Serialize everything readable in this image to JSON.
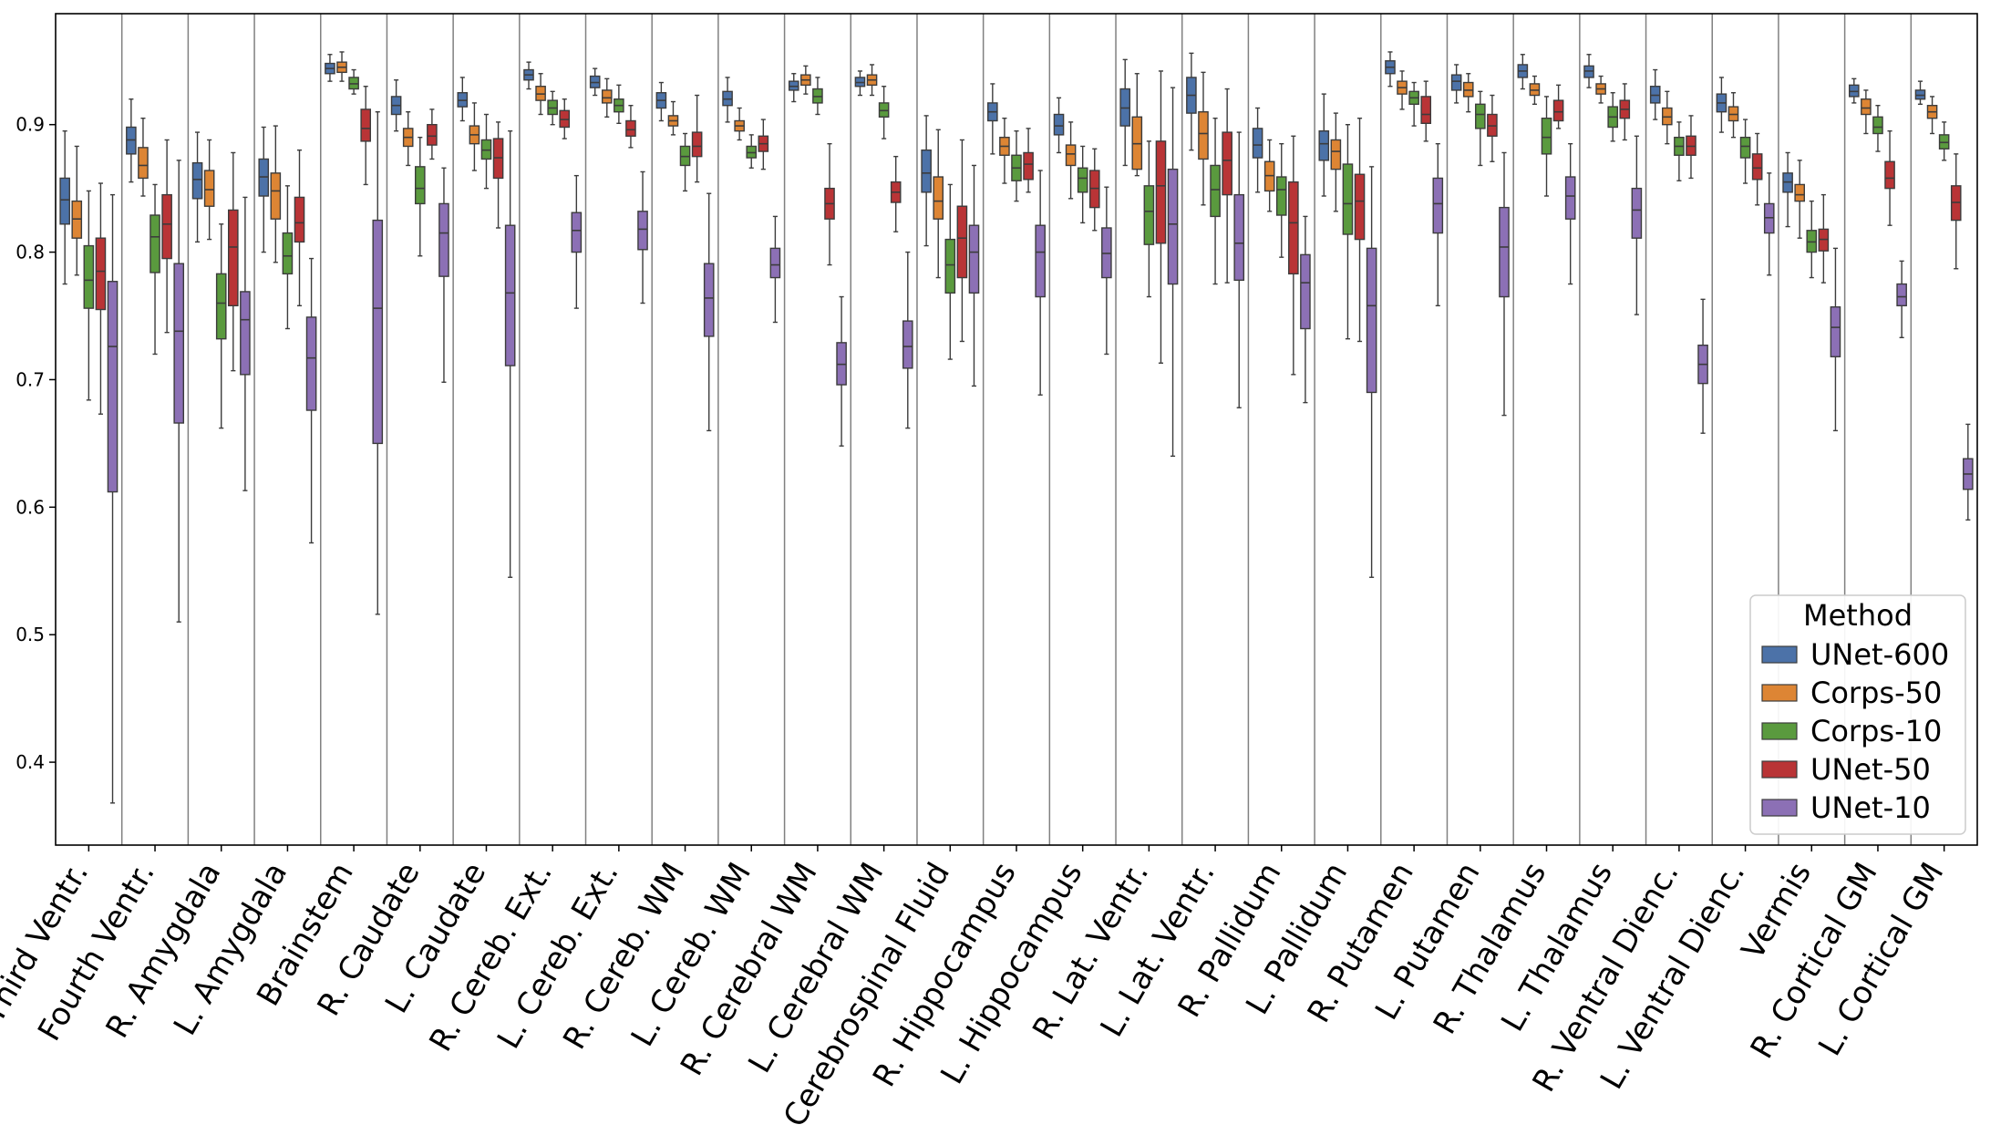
{
  "chart_data": {
    "type": "boxplot",
    "title": "",
    "xlabel": "",
    "ylabel": "",
    "ylim": [
      0.335,
      0.987
    ],
    "yticks": [
      0.4,
      0.5,
      0.6,
      0.7,
      0.8,
      0.9
    ],
    "ytick_labels": [
      "0.4",
      "0.5",
      "0.6",
      "0.7",
      "0.8",
      "0.9"
    ],
    "grid": false,
    "legend": {
      "title": "Method",
      "position": "lower-right",
      "entries": [
        "UNet-600",
        "Corps-50",
        "Corps-10",
        "UNet-50",
        "UNet-10"
      ]
    },
    "series": [
      {
        "name": "UNet-600",
        "color": "#4c72a8"
      },
      {
        "name": "Corps-50",
        "color": "#dd8534"
      },
      {
        "name": "Corps-10",
        "color": "#5a9a3e"
      },
      {
        "name": "UNet-50",
        "color": "#b93436"
      },
      {
        "name": "UNet-10",
        "color": "#8c70b5"
      }
    ],
    "categories": [
      "Third Ventr.",
      "Fourth Ventr.",
      "R. Amygdala",
      "L. Amygdala",
      "Brainstem",
      "R. Caudate",
      "L. Caudate",
      "R. Cereb. Ext.",
      "L. Cereb. Ext.",
      "R. Cereb. WM",
      "L. Cereb. WM",
      "R. Cerebral WM",
      "L. Cerebral WM",
      "Cerebrospinal Fluid",
      "R. Hippocampus",
      "L. Hippocampus",
      "R. Lat. Ventr.",
      "L. Lat. Ventr.",
      "R. Pallidum",
      "L. Pallidum",
      "R. Putamen",
      "L. Putamen",
      "R. Thalamus",
      "L. Thalamus",
      "R. Ventral Dienc.",
      "L. Ventral Dienc.",
      "Vermis",
      "R. Cortical GM",
      "L. Cortical GM"
    ],
    "boxes": [
      [
        [
          0.775,
          0.822,
          0.841,
          0.858,
          0.895
        ],
        [
          0.782,
          0.811,
          0.826,
          0.84,
          0.883
        ],
        [
          0.684,
          0.756,
          0.778,
          0.805,
          0.848
        ],
        [
          0.673,
          0.755,
          0.785,
          0.811,
          0.854
        ],
        [
          0.368,
          0.612,
          0.726,
          0.777,
          0.845
        ]
      ],
      [
        [
          0.855,
          0.877,
          0.888,
          0.898,
          0.92
        ],
        [
          0.844,
          0.858,
          0.868,
          0.882,
          0.905
        ],
        [
          0.72,
          0.784,
          0.812,
          0.829,
          0.853
        ],
        [
          0.737,
          0.795,
          0.822,
          0.845,
          0.888
        ],
        [
          0.51,
          0.666,
          0.738,
          0.791,
          0.872
        ]
      ],
      [
        [
          0.808,
          0.842,
          0.857,
          0.87,
          0.894
        ],
        [
          0.81,
          0.836,
          0.849,
          0.864,
          0.888
        ],
        [
          0.662,
          0.732,
          0.76,
          0.783,
          0.822
        ],
        [
          0.707,
          0.758,
          0.804,
          0.833,
          0.878
        ],
        [
          0.613,
          0.704,
          0.747,
          0.769,
          0.843
        ]
      ],
      [
        [
          0.8,
          0.844,
          0.859,
          0.873,
          0.898
        ],
        [
          0.792,
          0.826,
          0.848,
          0.862,
          0.899
        ],
        [
          0.74,
          0.783,
          0.797,
          0.815,
          0.852
        ],
        [
          0.758,
          0.808,
          0.823,
          0.843,
          0.88
        ],
        [
          0.572,
          0.676,
          0.717,
          0.749,
          0.795
        ]
      ],
      [
        [
          0.934,
          0.94,
          0.944,
          0.948,
          0.955
        ],
        [
          0.934,
          0.941,
          0.945,
          0.949,
          0.957
        ],
        [
          0.924,
          0.928,
          0.932,
          0.937,
          0.943
        ],
        [
          0.853,
          0.887,
          0.897,
          0.912,
          0.93
        ],
        [
          0.516,
          0.65,
          0.756,
          0.825,
          0.91
        ]
      ],
      [
        [
          0.895,
          0.908,
          0.915,
          0.922,
          0.935
        ],
        [
          0.868,
          0.883,
          0.89,
          0.897,
          0.91
        ],
        [
          0.797,
          0.838,
          0.85,
          0.867,
          0.89
        ],
        [
          0.873,
          0.884,
          0.891,
          0.9,
          0.912
        ],
        [
          0.698,
          0.781,
          0.815,
          0.838,
          0.866
        ]
      ],
      [
        [
          0.903,
          0.914,
          0.919,
          0.925,
          0.937
        ],
        [
          0.864,
          0.885,
          0.892,
          0.899,
          0.917
        ],
        [
          0.85,
          0.873,
          0.88,
          0.888,
          0.908
        ],
        [
          0.819,
          0.858,
          0.874,
          0.889,
          0.902
        ],
        [
          0.545,
          0.711,
          0.768,
          0.821,
          0.895
        ]
      ],
      [
        [
          0.928,
          0.935,
          0.939,
          0.943,
          0.949
        ],
        [
          0.908,
          0.919,
          0.924,
          0.93,
          0.94
        ],
        [
          0.9,
          0.908,
          0.913,
          0.919,
          0.926
        ],
        [
          0.889,
          0.898,
          0.904,
          0.911,
          0.92
        ],
        [
          0.756,
          0.8,
          0.817,
          0.831,
          0.86
        ]
      ],
      [
        [
          0.923,
          0.929,
          0.933,
          0.938,
          0.944
        ],
        [
          0.906,
          0.917,
          0.921,
          0.927,
          0.936
        ],
        [
          0.901,
          0.91,
          0.915,
          0.92,
          0.931
        ],
        [
          0.882,
          0.891,
          0.896,
          0.903,
          0.915
        ],
        [
          0.76,
          0.802,
          0.818,
          0.832,
          0.863
        ]
      ],
      [
        [
          0.903,
          0.913,
          0.919,
          0.925,
          0.933
        ],
        [
          0.892,
          0.899,
          0.903,
          0.907,
          0.918
        ],
        [
          0.848,
          0.868,
          0.875,
          0.883,
          0.893
        ],
        [
          0.855,
          0.875,
          0.883,
          0.894,
          0.923
        ],
        [
          0.66,
          0.734,
          0.764,
          0.791,
          0.846
        ]
      ],
      [
        [
          0.902,
          0.915,
          0.92,
          0.926,
          0.937
        ],
        [
          0.888,
          0.895,
          0.899,
          0.903,
          0.913
        ],
        [
          0.866,
          0.874,
          0.878,
          0.883,
          0.892
        ],
        [
          0.865,
          0.879,
          0.885,
          0.891,
          0.904
        ],
        [
          0.745,
          0.78,
          0.79,
          0.803,
          0.828
        ]
      ],
      [
        [
          0.918,
          0.927,
          0.93,
          0.934,
          0.94
        ],
        [
          0.924,
          0.931,
          0.935,
          0.939,
          0.946
        ],
        [
          0.908,
          0.917,
          0.922,
          0.928,
          0.937
        ],
        [
          0.79,
          0.826,
          0.838,
          0.85,
          0.885
        ],
        [
          0.648,
          0.696,
          0.712,
          0.729,
          0.765
        ]
      ],
      [
        [
          0.923,
          0.93,
          0.933,
          0.937,
          0.942
        ],
        [
          0.923,
          0.931,
          0.935,
          0.939,
          0.947
        ],
        [
          0.889,
          0.906,
          0.911,
          0.917,
          0.93
        ],
        [
          0.816,
          0.839,
          0.847,
          0.855,
          0.875
        ],
        [
          0.662,
          0.709,
          0.726,
          0.746,
          0.8
        ]
      ],
      [
        [
          0.805,
          0.847,
          0.862,
          0.88,
          0.907
        ],
        [
          0.78,
          0.826,
          0.84,
          0.859,
          0.896
        ],
        [
          0.716,
          0.768,
          0.79,
          0.81,
          0.853
        ],
        [
          0.73,
          0.78,
          0.811,
          0.836,
          0.888
        ],
        [
          0.695,
          0.768,
          0.8,
          0.821,
          0.868
        ]
      ],
      [
        [
          0.877,
          0.903,
          0.91,
          0.917,
          0.932
        ],
        [
          0.854,
          0.876,
          0.883,
          0.89,
          0.905
        ],
        [
          0.84,
          0.856,
          0.866,
          0.876,
          0.895
        ],
        [
          0.847,
          0.857,
          0.869,
          0.878,
          0.897
        ],
        [
          0.688,
          0.765,
          0.8,
          0.821,
          0.864
        ]
      ],
      [
        [
          0.878,
          0.892,
          0.899,
          0.908,
          0.921
        ],
        [
          0.842,
          0.868,
          0.877,
          0.884,
          0.902
        ],
        [
          0.823,
          0.847,
          0.858,
          0.866,
          0.883
        ],
        [
          0.817,
          0.835,
          0.85,
          0.864,
          0.881
        ],
        [
          0.72,
          0.78,
          0.799,
          0.819,
          0.851
        ]
      ],
      [
        [
          0.868,
          0.899,
          0.913,
          0.928,
          0.951
        ],
        [
          0.86,
          0.865,
          0.885,
          0.906,
          0.94
        ],
        [
          0.765,
          0.806,
          0.832,
          0.852,
          0.887
        ],
        [
          0.713,
          0.807,
          0.852,
          0.887,
          0.942
        ],
        [
          0.64,
          0.775,
          0.822,
          0.865,
          0.929
        ]
      ],
      [
        [
          0.88,
          0.909,
          0.923,
          0.937,
          0.956
        ],
        [
          0.837,
          0.873,
          0.893,
          0.91,
          0.941
        ],
        [
          0.775,
          0.828,
          0.849,
          0.868,
          0.905
        ],
        [
          0.776,
          0.845,
          0.872,
          0.894,
          0.928
        ],
        [
          0.678,
          0.778,
          0.807,
          0.845,
          0.894
        ]
      ],
      [
        [
          0.847,
          0.874,
          0.884,
          0.897,
          0.913
        ],
        [
          0.832,
          0.848,
          0.86,
          0.871,
          0.888
        ],
        [
          0.796,
          0.829,
          0.849,
          0.859,
          0.885
        ],
        [
          0.704,
          0.783,
          0.823,
          0.855,
          0.891
        ],
        [
          0.682,
          0.74,
          0.776,
          0.798,
          0.828
        ]
      ],
      [
        [
          0.844,
          0.872,
          0.885,
          0.895,
          0.924
        ],
        [
          0.832,
          0.865,
          0.879,
          0.888,
          0.909
        ],
        [
          0.732,
          0.814,
          0.838,
          0.869,
          0.9
        ],
        [
          0.73,
          0.81,
          0.84,
          0.861,
          0.905
        ],
        [
          0.545,
          0.69,
          0.758,
          0.803,
          0.867
        ]
      ],
      [
        [
          0.93,
          0.94,
          0.945,
          0.95,
          0.957
        ],
        [
          0.912,
          0.924,
          0.929,
          0.934,
          0.942
        ],
        [
          0.899,
          0.916,
          0.921,
          0.926,
          0.933
        ],
        [
          0.887,
          0.901,
          0.908,
          0.922,
          0.934
        ],
        [
          0.758,
          0.815,
          0.838,
          0.858,
          0.885
        ]
      ],
      [
        [
          0.917,
          0.927,
          0.934,
          0.939,
          0.947
        ],
        [
          0.91,
          0.922,
          0.927,
          0.933,
          0.94
        ],
        [
          0.868,
          0.897,
          0.908,
          0.916,
          0.926
        ],
        [
          0.871,
          0.891,
          0.899,
          0.908,
          0.923
        ],
        [
          0.672,
          0.765,
          0.804,
          0.835,
          0.878
        ]
      ],
      [
        [
          0.928,
          0.937,
          0.942,
          0.947,
          0.955
        ],
        [
          0.916,
          0.923,
          0.927,
          0.932,
          0.938
        ],
        [
          0.844,
          0.877,
          0.89,
          0.905,
          0.922
        ],
        [
          0.897,
          0.903,
          0.91,
          0.919,
          0.931
        ],
        [
          0.775,
          0.826,
          0.844,
          0.859,
          0.885
        ]
      ],
      [
        [
          0.929,
          0.937,
          0.942,
          0.946,
          0.955
        ],
        [
          0.917,
          0.924,
          0.928,
          0.932,
          0.938
        ],
        [
          0.887,
          0.898,
          0.906,
          0.914,
          0.925
        ],
        [
          0.888,
          0.905,
          0.912,
          0.919,
          0.932
        ],
        [
          0.751,
          0.811,
          0.833,
          0.85,
          0.891
        ]
      ],
      [
        [
          0.904,
          0.917,
          0.923,
          0.93,
          0.943
        ],
        [
          0.885,
          0.9,
          0.906,
          0.913,
          0.926
        ],
        [
          0.856,
          0.876,
          0.883,
          0.89,
          0.902
        ],
        [
          0.858,
          0.876,
          0.883,
          0.891,
          0.907
        ],
        [
          0.658,
          0.697,
          0.712,
          0.727,
          0.763
        ]
      ],
      [
        [
          0.894,
          0.91,
          0.917,
          0.924,
          0.937
        ],
        [
          0.89,
          0.903,
          0.908,
          0.914,
          0.925
        ],
        [
          0.854,
          0.874,
          0.883,
          0.89,
          0.904
        ],
        [
          0.837,
          0.857,
          0.866,
          0.877,
          0.893
        ],
        [
          0.782,
          0.815,
          0.827,
          0.838,
          0.862
        ]
      ],
      [
        [
          0.82,
          0.847,
          0.855,
          0.862,
          0.878
        ],
        [
          0.811,
          0.84,
          0.845,
          0.853,
          0.872
        ],
        [
          0.78,
          0.8,
          0.808,
          0.817,
          0.84
        ],
        [
          0.776,
          0.801,
          0.81,
          0.818,
          0.845
        ],
        [
          0.66,
          0.718,
          0.741,
          0.757,
          0.803
        ]
      ],
      [
        [
          0.917,
          0.922,
          0.926,
          0.931,
          0.936
        ],
        [
          0.893,
          0.908,
          0.913,
          0.92,
          0.927
        ],
        [
          0.879,
          0.893,
          0.898,
          0.906,
          0.915
        ],
        [
          0.821,
          0.85,
          0.858,
          0.871,
          0.895
        ],
        [
          0.733,
          0.758,
          0.765,
          0.775,
          0.793
        ]
      ],
      [
        [
          0.916,
          0.92,
          0.923,
          0.927,
          0.934
        ],
        [
          0.893,
          0.905,
          0.91,
          0.915,
          0.922
        ],
        [
          0.872,
          0.881,
          0.886,
          0.892,
          0.902
        ],
        [
          0.787,
          0.825,
          0.839,
          0.852,
          0.877
        ],
        [
          0.59,
          0.614,
          0.626,
          0.638,
          0.665
        ]
      ]
    ]
  }
}
